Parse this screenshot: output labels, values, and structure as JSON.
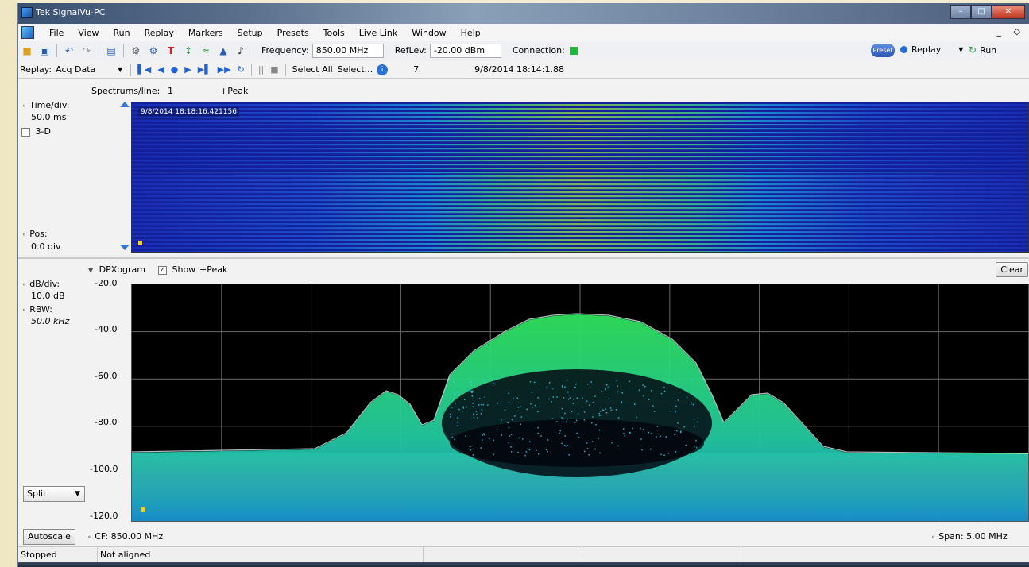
{
  "window": {
    "title": "Tek SignalVu-PC"
  },
  "menu": [
    "File",
    "View",
    "Run",
    "Replay",
    "Markers",
    "Setup",
    "Presets",
    "Tools",
    "Live Link",
    "Window",
    "Help"
  ],
  "toolbar": {
    "frequency_label": "Frequency:",
    "frequency_value": "850.00 MHz",
    "reflev_label": "RefLev:",
    "reflev_value": "-20.00 dBm",
    "connection_label": "Connection:",
    "preset_label": "Preset",
    "replay_label": "Replay",
    "run_label": "Run"
  },
  "replaybar": {
    "label": "Replay:",
    "source": "Acq Data",
    "select_all": "Select All",
    "select": "Select...",
    "count": "7",
    "datetime": "9/8/2014 18:14:1.88"
  },
  "spectrogram": {
    "spectrums_label": "Spectrums/line:",
    "spectrums_value": "1",
    "detector": "+Peak",
    "time_div_label": "Time/div:",
    "time_div_value": "50.0 ms",
    "three_d_label": "3-D",
    "pos_label": "Pos:",
    "pos_value": "0.0 div",
    "timestamp": "9/8/2014 18:18:16.421156"
  },
  "dpx": {
    "title": "DPXogram",
    "show_label": "Show",
    "detector": "+Peak",
    "clear_label": "Clear",
    "db_div_label": "dB/div:",
    "db_div_value": "10.0 dB",
    "rbw_label": "RBW:",
    "rbw_value": "50.0 kHz",
    "yticks": [
      "-20.0",
      "-40.0",
      "-60.0",
      "-80.0",
      "-100.0",
      "-120.0"
    ],
    "view_mode": "Split",
    "autoscale_label": "Autoscale",
    "cf_label": "CF:",
    "cf_value": "850.00 MHz",
    "span_label": "Span:",
    "span_value": "5.00 MHz"
  },
  "status": {
    "state": "Stopped",
    "alignment": "Not aligned"
  },
  "colors": {
    "trace_green": "#2fe05a",
    "trace_cyan": "#38d6ff",
    "noise_orange": "#f07a1a",
    "noise_yellow": "#f4e23a",
    "spectro_blue": "#1b2aa8"
  }
}
